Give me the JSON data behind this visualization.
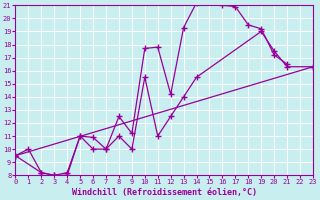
{
  "xlabel": "Windchill (Refroidissement éolien,°C)",
  "bg_color": "#c8eef0",
  "line_color": "#990099",
  "grid_color": "#ffffff",
  "xlim": [
    0,
    23
  ],
  "ylim": [
    8,
    21
  ],
  "xticks": [
    0,
    1,
    2,
    3,
    4,
    5,
    6,
    7,
    8,
    9,
    10,
    11,
    12,
    13,
    14,
    15,
    16,
    17,
    18,
    19,
    20,
    21,
    22,
    23
  ],
  "yticks": [
    8,
    9,
    10,
    11,
    12,
    13,
    14,
    15,
    16,
    17,
    18,
    19,
    20,
    21
  ],
  "line1_x": [
    0,
    1,
    2,
    3,
    4,
    5,
    6,
    7,
    8,
    9,
    10,
    11,
    12,
    13,
    14,
    15,
    16,
    17,
    18,
    19,
    20,
    21
  ],
  "line1_y": [
    9.5,
    10.0,
    8.2,
    8.0,
    8.2,
    11.0,
    10.0,
    10.0,
    12.5,
    11.2,
    17.7,
    17.8,
    14.2,
    19.3,
    21.2,
    21.3,
    21.0,
    20.9,
    19.5,
    19.2,
    17.2,
    16.5
  ],
  "line2_x": [
    0,
    2,
    3,
    4,
    5,
    6,
    7,
    8,
    9,
    10,
    11,
    12,
    13,
    14,
    19,
    20,
    21,
    23
  ],
  "line2_y": [
    9.5,
    8.2,
    8.0,
    8.0,
    11.0,
    10.9,
    10.0,
    11.0,
    10.0,
    15.5,
    11.0,
    12.5,
    14.0,
    15.5,
    19.0,
    17.5,
    16.3,
    16.3
  ],
  "line3_x": [
    0,
    23
  ],
  "line3_y": [
    9.5,
    16.3
  ],
  "marker": "+",
  "markersize": 4,
  "linewidth": 0.9,
  "tick_fontsize": 5,
  "xlabel_fontsize": 6
}
